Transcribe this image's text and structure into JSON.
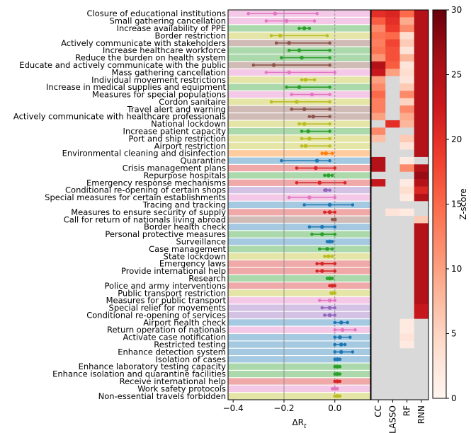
{
  "chart_data": [
    {
      "type": "scatter",
      "subtype": "interval-dot-plot",
      "xlabel": "ΔR",
      "xlabel_sub": "t",
      "xlim": [
        -0.42,
        0.14
      ],
      "xticks": [
        -0.4,
        -0.2,
        0.0
      ],
      "xtick_labels": [
        "−0.4",
        "−0.2",
        "0.0"
      ],
      "reference_lines": [
        -0.2,
        0.0
      ],
      "grid": false,
      "categories": [
        "Closure of educational institutions",
        "Small gathering cancellation",
        "Increase availability of PPE",
        "Border restriction",
        "Actively communicate with stakeholders",
        "Increase healthcare workforce",
        "Reduce the burden on health system",
        "Educate and actively communicate with the public",
        "Mass gathering cancellation",
        "Individual movement restrictions",
        "Increase in medical supplies and equipment",
        "Measures for special populations",
        "Cordon sanitaire",
        "Travel alert and warning",
        "Actively communicate with healthcare professionals",
        "National lockdown",
        "Increase patient capacity",
        "Port and ship restriction",
        "Airport restriction",
        "Environmental cleaning and disinfection",
        "Quarantine",
        "Crisis management plans",
        "Repurpose hospitals",
        "Emergency response mechanisms",
        "Conditional re-opening of certain shops",
        "Special measures for certain establishments",
        "Tracing and tracking",
        "Measures to ensure security of supply",
        "Call for return of nationals living abroad",
        "Border health check",
        "Personal protective measures",
        "Surveillance",
        "Case management",
        "State lockdown",
        "Emergency laws",
        "Provide international help",
        "Research",
        "Police and army interventions",
        "Public transport restriction",
        "Measures for public transport",
        "Special relief for movements",
        "Conditional re-opening of services",
        "Airport health check",
        "Return operation of nationals",
        "Activate case notification",
        "Restricted testing",
        "Enhance detection system",
        "Isolation of cases",
        "Enhance laboratory testing capacity",
        "Enhance isolation and quarantine facilities",
        "Receive international help",
        "Work safety protocols",
        "Non-essential travels forbidden"
      ],
      "estimates": [
        -0.235,
        -0.19,
        -0.12,
        -0.215,
        -0.18,
        -0.14,
        -0.13,
        -0.24,
        -0.18,
        -0.115,
        -0.14,
        -0.09,
        -0.15,
        -0.12,
        -0.085,
        -0.12,
        -0.105,
        -0.1,
        -0.115,
        -0.035,
        -0.07,
        -0.075,
        -0.025,
        -0.06,
        -0.035,
        -0.1,
        -0.02,
        -0.02,
        0.0,
        -0.05,
        -0.05,
        -0.02,
        -0.03,
        -0.025,
        -0.05,
        -0.05,
        -0.02,
        -0.01,
        -0.01,
        -0.02,
        -0.02,
        -0.02,
        0.025,
        0.03,
        0.02,
        0.025,
        0.025,
        0.01,
        0.01,
        0.01,
        0.01,
        0.0,
        0.01
      ],
      "ci_low": [
        -0.34,
        -0.27,
        -0.14,
        -0.25,
        -0.23,
        -0.18,
        -0.21,
        -0.32,
        -0.27,
        -0.13,
        -0.19,
        -0.17,
        -0.25,
        -0.17,
        -0.1,
        -0.14,
        -0.13,
        -0.13,
        -0.13,
        -0.05,
        -0.21,
        -0.15,
        -0.04,
        -0.15,
        -0.04,
        -0.18,
        -0.12,
        -0.04,
        -0.01,
        -0.1,
        -0.09,
        -0.03,
        -0.06,
        -0.04,
        -0.07,
        -0.07,
        -0.03,
        -0.02,
        -0.015,
        -0.06,
        -0.05,
        -0.04,
        0.0,
        0.0,
        0.0,
        0.0,
        0.0,
        0.0,
        0.0,
        0.0,
        0.0,
        -0.01,
        0.0
      ],
      "ci_high": [
        -0.07,
        -0.08,
        -0.1,
        -0.03,
        -0.02,
        -0.02,
        -0.02,
        -0.02,
        0.0,
        -0.08,
        -0.02,
        -0.02,
        -0.02,
        -0.02,
        -0.02,
        -0.02,
        -0.02,
        -0.02,
        -0.02,
        -0.01,
        -0.02,
        0.0,
        -0.01,
        0.04,
        -0.02,
        0.0,
        0.07,
        0.0,
        0.0,
        0.0,
        0.0,
        -0.01,
        -0.01,
        -0.01,
        0.0,
        0.0,
        -0.01,
        0.0,
        0.0,
        0.0,
        0.0,
        0.0,
        0.05,
        0.08,
        0.06,
        0.04,
        0.07,
        0.02,
        0.02,
        0.02,
        0.02,
        0.01,
        0.02
      ],
      "category_colors": [
        "#e377c2",
        "#e377c2",
        "#2ca02c",
        "#bcbd22",
        "#8c564b",
        "#2ca02c",
        "#2ca02c",
        "#8c564b",
        "#e377c2",
        "#bcbd22",
        "#2ca02c",
        "#e377c2",
        "#bcbd22",
        "#8c564b",
        "#8c564b",
        "#bcbd22",
        "#2ca02c",
        "#bcbd22",
        "#bcbd22",
        "#ff7f0e",
        "#1f77b4",
        "#d62728",
        "#2ca02c",
        "#d62728",
        "#9467bd",
        "#e377c2",
        "#1f77b4",
        "#d62728",
        "#8c564b",
        "#1f77b4",
        "#2ca02c",
        "#1f77b4",
        "#2ca02c",
        "#bcbd22",
        "#d62728",
        "#d62728",
        "#2ca02c",
        "#d62728",
        "#bcbd22",
        "#e377c2",
        "#9467bd",
        "#9467bd",
        "#1f77b4",
        "#e377c2",
        "#1f77b4",
        "#1f77b4",
        "#1f77b4",
        "#1f77b4",
        "#2ca02c",
        "#2ca02c",
        "#d62728",
        "#e377c2",
        "#bcbd22"
      ]
    },
    {
      "type": "heatmap",
      "columns": [
        "CC",
        "LASSO",
        "RF",
        "RNN"
      ],
      "colorbar": {
        "label": "Z-score",
        "range": [
          0,
          30
        ],
        "ticks": [
          0,
          5,
          10,
          15,
          20,
          25,
          30
        ]
      },
      "missing_color": "#d9d9d9",
      "values": [
        [
          20,
          21,
          15,
          25
        ],
        [
          16,
          20,
          9,
          25
        ],
        [
          12,
          19,
          12,
          25
        ],
        [
          14,
          15,
          4,
          25
        ],
        [
          13,
          18,
          6,
          25
        ],
        [
          14,
          17,
          3,
          25
        ],
        [
          11,
          17,
          8,
          25
        ],
        [
          25,
          16,
          3,
          25
        ],
        [
          23,
          10,
          4,
          25
        ],
        [
          10,
          null,
          3,
          25
        ],
        [
          12,
          null,
          6,
          25
        ],
        [
          15,
          null,
          12,
          25
        ],
        [
          13,
          null,
          5,
          25
        ],
        [
          13,
          null,
          12,
          25
        ],
        [
          10,
          null,
          9,
          25
        ],
        [
          null,
          20,
          8,
          25
        ],
        [
          12,
          null,
          null,
          25
        ],
        [
          7,
          null,
          6,
          25
        ],
        [
          null,
          null,
          3,
          25
        ],
        [
          null,
          null,
          null,
          25
        ],
        [
          25,
          null,
          2,
          null
        ],
        [
          25,
          null,
          12,
          25
        ],
        [
          null,
          null,
          null,
          27
        ],
        [
          23,
          null,
          2,
          25
        ],
        [
          null,
          null,
          4,
          21
        ],
        [
          null,
          null,
          2,
          25
        ],
        [
          null,
          null,
          null,
          null
        ],
        [
          null,
          3,
          2,
          null
        ],
        [
          null,
          null,
          null,
          6
        ],
        [
          null,
          null,
          null,
          25
        ],
        [
          null,
          null,
          null,
          25
        ],
        [
          null,
          null,
          null,
          25
        ],
        [
          null,
          null,
          null,
          25
        ],
        [
          null,
          null,
          null,
          25
        ],
        [
          null,
          null,
          null,
          25
        ],
        [
          null,
          null,
          null,
          25
        ],
        [
          null,
          null,
          null,
          25
        ],
        [
          null,
          null,
          null,
          25
        ],
        [
          null,
          null,
          null,
          25
        ],
        [
          null,
          null,
          null,
          25
        ],
        [
          null,
          null,
          null,
          23
        ],
        [
          null,
          null,
          null,
          23
        ],
        [
          null,
          null,
          2,
          null
        ],
        [
          null,
          null,
          2,
          null
        ],
        [
          null,
          null,
          3,
          null
        ],
        [
          null,
          null,
          2,
          null
        ],
        [
          null,
          null,
          null,
          null
        ],
        [
          null,
          null,
          null,
          null
        ],
        [
          null,
          null,
          null,
          null
        ],
        [
          null,
          null,
          null,
          null
        ],
        [
          null,
          null,
          null,
          null
        ],
        [
          null,
          null,
          null,
          null
        ],
        [
          null,
          null,
          null,
          null
        ]
      ]
    }
  ]
}
